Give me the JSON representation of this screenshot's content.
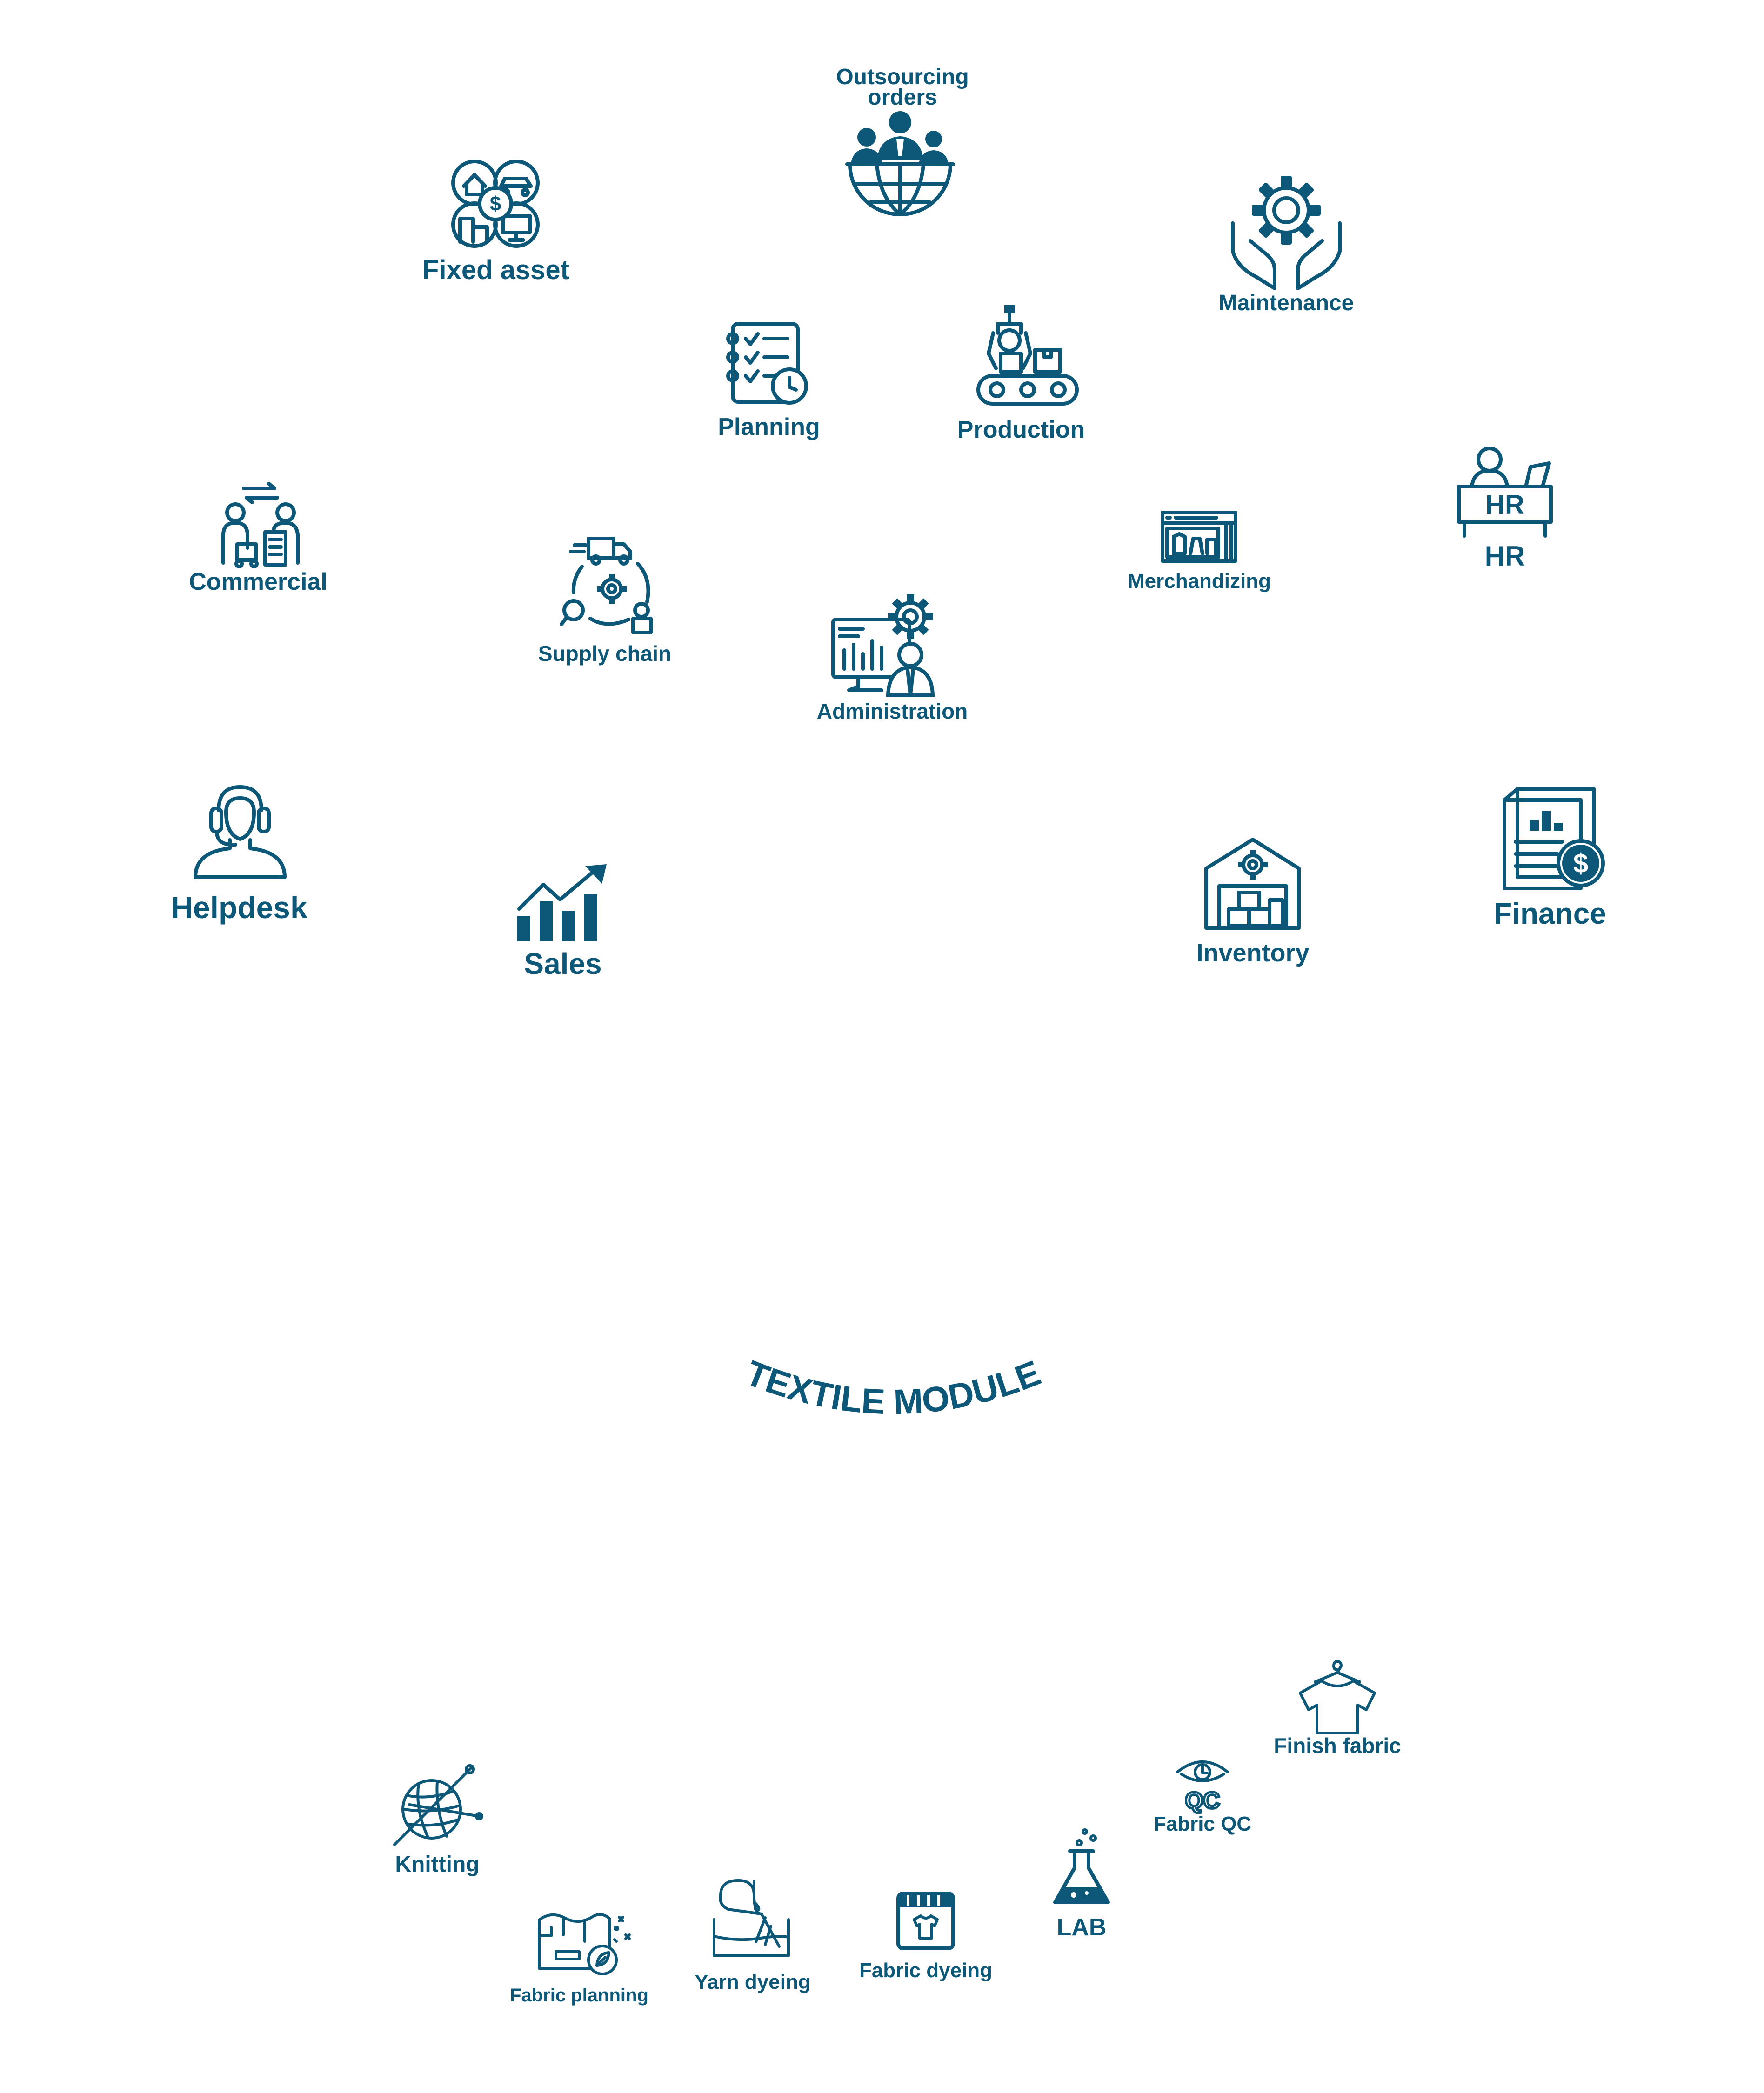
{
  "title": "TEXTILE MODULE",
  "colors": {
    "primary": "#0d5878",
    "background": "#ffffff"
  },
  "modules": {
    "outsourcing": {
      "label_line1": "Outsourcing",
      "label_line2": "orders",
      "icon": "global-team-icon"
    },
    "fixed_asset": {
      "label": "Fixed asset",
      "icon": "assets-icon"
    },
    "maintenance": {
      "label": "Maintenance",
      "icon": "gear-hands-icon"
    },
    "planning": {
      "label": "Planning",
      "icon": "checklist-clock-icon"
    },
    "production": {
      "label": "Production",
      "icon": "conveyor-robot-icon"
    },
    "hr": {
      "label": "HR",
      "icon": "hr-desk-icon"
    },
    "commercial": {
      "label": "Commercial",
      "icon": "trade-people-icon"
    },
    "supply_chain": {
      "label": "Supply chain",
      "icon": "supply-cycle-icon"
    },
    "merchandizing": {
      "label": "Merchandizing",
      "icon": "store-window-icon"
    },
    "administration": {
      "label": "Administration",
      "icon": "admin-monitor-icon"
    },
    "helpdesk": {
      "label": "Helpdesk",
      "icon": "headset-agent-icon"
    },
    "sales": {
      "label": "Sales",
      "icon": "growth-chart-icon"
    },
    "inventory": {
      "label": "Inventory",
      "icon": "warehouse-icon"
    },
    "finance": {
      "label": "Finance",
      "icon": "finance-report-icon"
    }
  },
  "textile": {
    "knitting": {
      "label": "Knitting",
      "icon": "yarn-ball-icon"
    },
    "fabric_planning": {
      "label": "Fabric planning",
      "icon": "dye-bucket-icon"
    },
    "yarn_dyeing": {
      "label": "Yarn dyeing",
      "icon": "fabric-roll-icon"
    },
    "fabric_dyeing": {
      "label": "Fabric dyeing",
      "icon": "dyed-shirt-icon"
    },
    "lab": {
      "label": "LAB",
      "icon": "flask-icon"
    },
    "fabric_qc": {
      "label": "Fabric QC",
      "icon": "eye-qc-icon"
    },
    "finish_fabric": {
      "label": "Finish fabric",
      "icon": "tshirt-hanger-icon"
    }
  }
}
